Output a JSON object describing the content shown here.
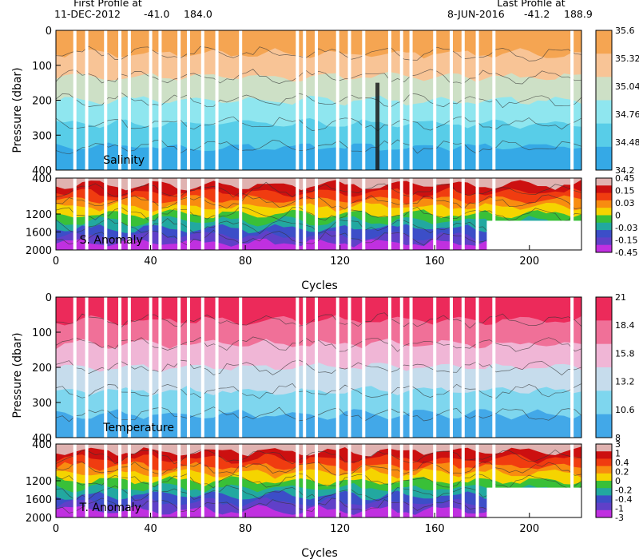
{
  "header": {
    "first_title": "First Profile at",
    "first_date": "11-DEC-2012",
    "first_lat": "-41.0",
    "first_lon": "184.0",
    "last_title": "Last Profile at",
    "last_date": "8-JUN-2016",
    "last_lat": "-41.2",
    "last_lon": "188.9"
  },
  "chart_data": [
    {
      "type": "heatmap",
      "label": "Salinity",
      "xlabel": "",
      "ylabel": "Pressure (dbar)",
      "xlim": [
        0,
        222
      ],
      "ylim": [
        400,
        0
      ],
      "y_ticks": [
        0,
        100,
        200,
        300,
        400
      ],
      "colorbar": {
        "ticks": [
          "35.6",
          "35.32",
          "35.04",
          "34.76",
          "34.48",
          "34.2"
        ],
        "colors": [
          "#f5a552",
          "#f8c496",
          "#cde0c6",
          "#8fe6ef",
          "#58cde8",
          "#35a9e6"
        ]
      },
      "features": {
        "dark_streak_cycle": 136
      }
    },
    {
      "type": "heatmap",
      "label": "S. Anomaly",
      "xlabel": "Cycles",
      "ylabel": "",
      "xlim": [
        0,
        222
      ],
      "ylim": [
        2000,
        400
      ],
      "x_ticks": [
        0,
        40,
        80,
        120,
        160,
        200
      ],
      "y_ticks": [
        400,
        1200,
        1600,
        2000
      ],
      "colorbar": {
        "ticks": [
          "0.45",
          "0.15",
          "0.03",
          "0",
          "-0.03",
          "-0.15",
          "-0.45"
        ],
        "colors": [
          "#e0b2b0",
          "#cc1010",
          "#f03c10",
          "#f88c10",
          "#f5d400",
          "#39c038",
          "#22a8a0",
          "#3c4ec8",
          "#6040c8",
          "#c030e0"
        ]
      }
    },
    {
      "type": "heatmap",
      "label": "Temperature",
      "xlabel": "",
      "ylabel": "Pressure (dbar)",
      "xlim": [
        0,
        222
      ],
      "ylim": [
        400,
        0
      ],
      "y_ticks": [
        0,
        100,
        200,
        300,
        400
      ],
      "colorbar": {
        "ticks": [
          "21",
          "18.4",
          "15.8",
          "13.2",
          "10.6",
          "8"
        ],
        "colors": [
          "#ec2a5a",
          "#f07098",
          "#f0b6d6",
          "#c6dcec",
          "#7ed6ee",
          "#42a8e8"
        ]
      }
    },
    {
      "type": "heatmap",
      "label": "T. Anomaly",
      "xlabel": "Cycles",
      "ylabel": "",
      "xlim": [
        0,
        222
      ],
      "ylim": [
        2000,
        400
      ],
      "x_ticks": [
        0,
        40,
        80,
        120,
        160,
        200
      ],
      "y_ticks": [
        400,
        1200,
        1600,
        2000
      ],
      "colorbar": {
        "ticks": [
          "3",
          "1",
          "0.4",
          "0.2",
          "0",
          "-0.2",
          "-0.4",
          "-1",
          "-3"
        ],
        "colors": [
          "#e0b2b0",
          "#cc1010",
          "#f03c10",
          "#f88c10",
          "#f5d400",
          "#39c038",
          "#22a8a0",
          "#3c4ec8",
          "#6040c8",
          "#c030e0"
        ]
      }
    }
  ],
  "gap_cycles": [
    8,
    13,
    21,
    27,
    31,
    40,
    44,
    52,
    56,
    62,
    68,
    78,
    102,
    105,
    110,
    119,
    124,
    130,
    141,
    146,
    150,
    160,
    167,
    172,
    178,
    185,
    218
  ]
}
